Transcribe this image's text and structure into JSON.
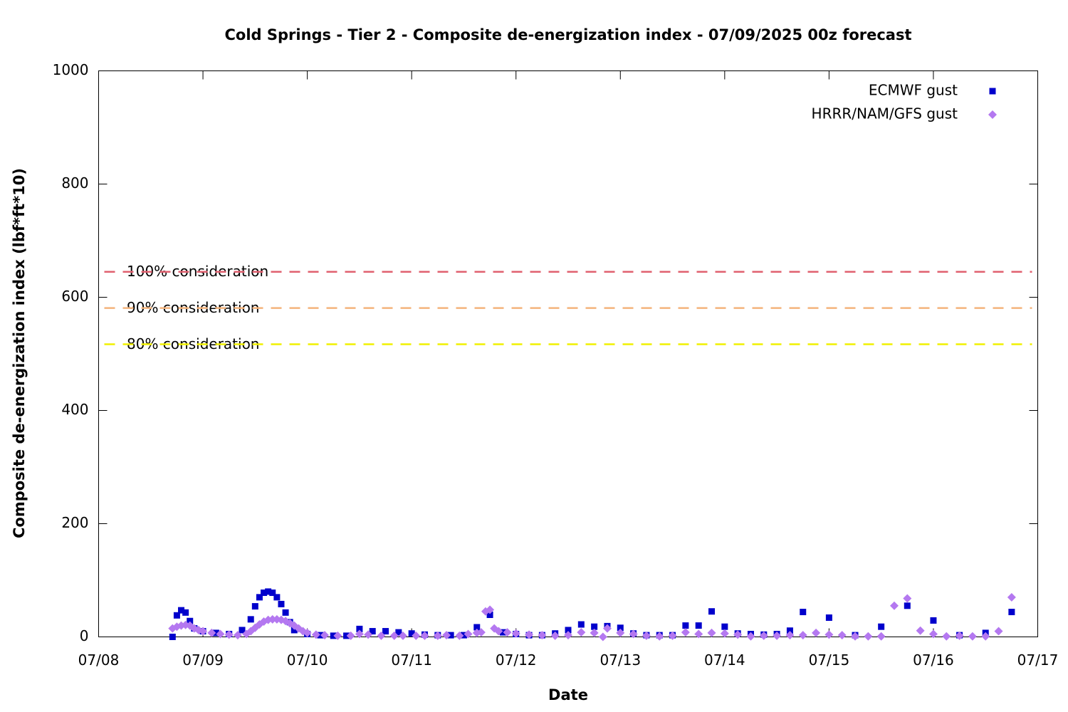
{
  "chart_data": {
    "type": "scatter",
    "title": "Cold Springs - Tier 2 - Composite de-energization index - 07/09/2025 00z forecast",
    "xlabel": "Date",
    "ylabel": "Composite de-energization index (lbf*ft*10)",
    "xlim": [
      0,
      216
    ],
    "xticks": [
      {
        "value": 0,
        "label": "07/08"
      },
      {
        "value": 24,
        "label": "07/09"
      },
      {
        "value": 48,
        "label": "07/10"
      },
      {
        "value": 72,
        "label": "07/11"
      },
      {
        "value": 96,
        "label": "07/12"
      },
      {
        "value": 120,
        "label": "07/13"
      },
      {
        "value": 144,
        "label": "07/14"
      },
      {
        "value": 168,
        "label": "07/15"
      },
      {
        "value": 192,
        "label": "07/16"
      },
      {
        "value": 216,
        "label": "07/17"
      }
    ],
    "ylim": [
      0,
      1000
    ],
    "yticks": [
      0,
      200,
      400,
      600,
      800,
      1000
    ],
    "legend": "top right",
    "reference_lines": [
      {
        "label": "100% consideration",
        "value": 645,
        "color": "#e0606f"
      },
      {
        "label": "90% consideration",
        "value": 581,
        "color": "#f4b47c"
      },
      {
        "label": "80% consideration",
        "value": 517,
        "color": "#f0f000"
      }
    ],
    "series": [
      {
        "name": "ECMWF gust",
        "color": "#0000cc",
        "marker": "square",
        "x": [
          17,
          18,
          19,
          20,
          21,
          22,
          24,
          27,
          30,
          33,
          35,
          36,
          37,
          38,
          39,
          40,
          41,
          42,
          43,
          44,
          45,
          48,
          51,
          54,
          57,
          60,
          63,
          66,
          69,
          72,
          75,
          78,
          81,
          84,
          87,
          90,
          93,
          96,
          99,
          102,
          105,
          108,
          111,
          114,
          117,
          120,
          123,
          126,
          129,
          132,
          135,
          138,
          141,
          144,
          147,
          150,
          153,
          156,
          159,
          162,
          168,
          174,
          180,
          186,
          192,
          198,
          204,
          210
        ],
        "values": [
          0,
          38,
          47,
          43,
          28,
          15,
          10,
          7,
          5,
          12,
          31,
          54,
          70,
          78,
          80,
          78,
          70,
          58,
          43,
          26,
          12,
          5,
          3,
          2,
          2,
          14,
          10,
          10,
          8,
          6,
          4,
          3,
          3,
          3,
          17,
          39,
          8,
          5,
          3,
          3,
          6,
          12,
          22,
          18,
          19,
          16,
          6,
          3,
          3,
          3,
          20,
          20,
          45,
          18,
          6,
          5,
          4,
          5,
          11,
          44,
          34,
          3,
          18,
          55,
          29,
          3,
          7,
          44
        ]
      },
      {
        "name": "HRRR/NAM/GFS gust",
        "color": "#b478f0",
        "marker": "diamond",
        "x": [
          17,
          18,
          19,
          20,
          21,
          22,
          23,
          24,
          26,
          28,
          30,
          32,
          34,
          35,
          36,
          37,
          38,
          39,
          40,
          41,
          42,
          43,
          44,
          45,
          46,
          47,
          48,
          50,
          52,
          55,
          58,
          60,
          62,
          65,
          68,
          70,
          73,
          75,
          78,
          80,
          83,
          85,
          87,
          88,
          89,
          90,
          91,
          92,
          94,
          96,
          99,
          102,
          105,
          108,
          111,
          114,
          116,
          117,
          120,
          123,
          126,
          129,
          132,
          135,
          138,
          141,
          144,
          147,
          150,
          153,
          156,
          159,
          162,
          165,
          168,
          171,
          174,
          177,
          180,
          183,
          186,
          189,
          192,
          195,
          198,
          201,
          204,
          207,
          210
        ],
        "values": [
          15,
          18,
          20,
          21,
          20,
          15,
          12,
          10,
          7,
          5,
          4,
          3,
          5,
          10,
          16,
          22,
          27,
          30,
          31,
          31,
          30,
          28,
          24,
          20,
          15,
          10,
          7,
          4,
          3,
          2,
          2,
          5,
          4,
          2,
          2,
          2,
          2,
          2,
          2,
          3,
          2,
          5,
          7,
          8,
          45,
          48,
          15,
          10,
          8,
          6,
          4,
          3,
          2,
          3,
          8,
          7,
          0,
          15,
          7,
          5,
          2,
          1,
          2,
          8,
          5,
          7,
          6,
          4,
          1,
          2,
          2,
          3,
          3,
          7,
          4,
          3,
          1,
          1,
          1,
          55,
          68,
          11,
          5,
          1,
          2,
          1,
          1,
          10,
          70
        ]
      }
    ]
  }
}
